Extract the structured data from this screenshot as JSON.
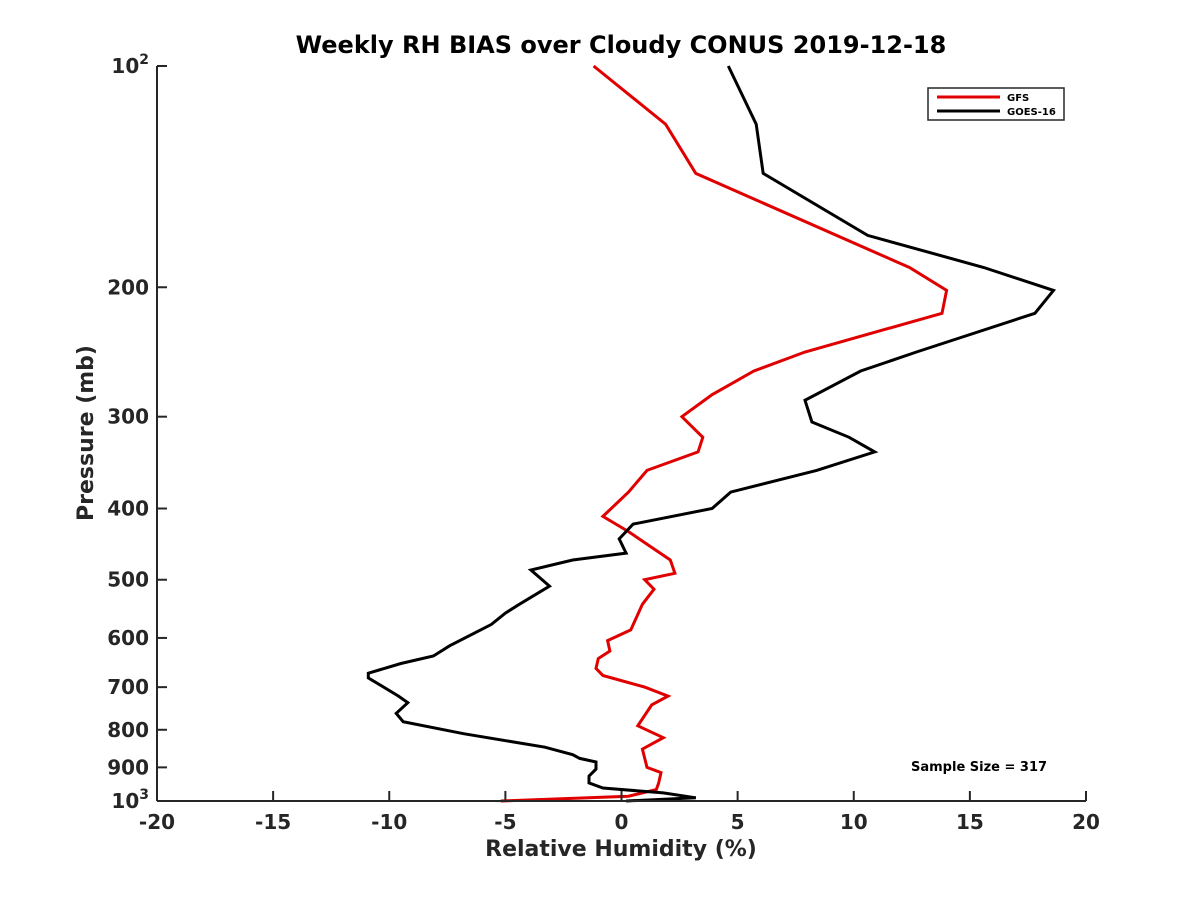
{
  "chart_data": {
    "type": "line",
    "title": "Weekly RH BIAS over Cloudy CONUS 2019-12-18",
    "xlabel": "Relative Humidity (%)",
    "ylabel": "Pressure (mb)",
    "xlim": [
      -20,
      20
    ],
    "ylim": [
      100,
      1000
    ],
    "y_scale": "log",
    "y_reversed": true,
    "x_ticks": [
      "-20",
      "-15",
      "-10",
      "-5",
      "0",
      "5",
      "10",
      "15",
      "20"
    ],
    "y_ticks": [
      {
        "value": 100,
        "base": "10",
        "exp": "2"
      },
      {
        "value": 200,
        "label": "200"
      },
      {
        "value": 300,
        "label": "300"
      },
      {
        "value": 400,
        "label": "400"
      },
      {
        "value": 500,
        "label": "500"
      },
      {
        "value": 600,
        "label": "600"
      },
      {
        "value": 700,
        "label": "700"
      },
      {
        "value": 800,
        "label": "800"
      },
      {
        "value": 900,
        "label": "900"
      },
      {
        "value": 1000,
        "base": "10",
        "exp": "3"
      }
    ],
    "grid": false,
    "legend_position": "top-right",
    "annotation": "Sample Size = 317",
    "series": [
      {
        "name": "GFS",
        "color": "#e00000",
        "points": [
          [
            -1.2,
            100
          ],
          [
            1.9,
            120
          ],
          [
            3.2,
            140
          ],
          [
            12.4,
            188
          ],
          [
            14.0,
            202
          ],
          [
            13.8,
            217
          ],
          [
            7.9,
            245
          ],
          [
            5.7,
            260
          ],
          [
            3.9,
            280
          ],
          [
            2.6,
            300
          ],
          [
            3.5,
            320
          ],
          [
            3.3,
            335
          ],
          [
            1.1,
            355
          ],
          [
            0.3,
            380
          ],
          [
            -0.8,
            410
          ],
          [
            0.3,
            430
          ],
          [
            2.1,
            470
          ],
          [
            2.3,
            490
          ],
          [
            1.0,
            500
          ],
          [
            1.4,
            515
          ],
          [
            0.9,
            540
          ],
          [
            0.4,
            585
          ],
          [
            -0.6,
            605
          ],
          [
            -0.5,
            625
          ],
          [
            -1.0,
            640
          ],
          [
            -1.1,
            660
          ],
          [
            -0.8,
            675
          ],
          [
            1.0,
            700
          ],
          [
            2.0,
            720
          ],
          [
            1.3,
            740
          ],
          [
            0.7,
            790
          ],
          [
            1.8,
            820
          ],
          [
            0.9,
            850
          ],
          [
            1.1,
            900
          ],
          [
            1.7,
            915
          ],
          [
            1.6,
            945
          ],
          [
            1.5,
            965
          ],
          [
            0.3,
            985
          ],
          [
            -5.2,
            1000
          ]
        ]
      },
      {
        "name": "GOES-16",
        "color": "#000000",
        "points": [
          [
            4.6,
            100
          ],
          [
            5.8,
            120
          ],
          [
            6.1,
            140
          ],
          [
            10.6,
            170
          ],
          [
            15.6,
            188
          ],
          [
            18.6,
            202
          ],
          [
            17.8,
            217
          ],
          [
            12.7,
            245
          ],
          [
            10.3,
            260
          ],
          [
            7.9,
            285
          ],
          [
            8.2,
            305
          ],
          [
            9.8,
            320
          ],
          [
            10.9,
            335
          ],
          [
            8.4,
            355
          ],
          [
            4.7,
            380
          ],
          [
            3.9,
            400
          ],
          [
            0.5,
            420
          ],
          [
            -0.1,
            440
          ],
          [
            0.2,
            460
          ],
          [
            -2.1,
            470
          ],
          [
            -3.9,
            485
          ],
          [
            -3.1,
            510
          ],
          [
            -4.4,
            540
          ],
          [
            -5.0,
            555
          ],
          [
            -5.6,
            575
          ],
          [
            -7.4,
            615
          ],
          [
            -8.1,
            635
          ],
          [
            -9.5,
            650
          ],
          [
            -10.9,
            670
          ],
          [
            -10.9,
            680
          ],
          [
            -9.6,
            720
          ],
          [
            -9.2,
            735
          ],
          [
            -9.7,
            760
          ],
          [
            -9.4,
            780
          ],
          [
            -6.8,
            810
          ],
          [
            -3.3,
            845
          ],
          [
            -2.1,
            865
          ],
          [
            -1.8,
            875
          ],
          [
            -1.1,
            885
          ],
          [
            -1.1,
            905
          ],
          [
            -1.4,
            925
          ],
          [
            -1.4,
            945
          ],
          [
            -0.8,
            960
          ],
          [
            1.8,
            975
          ],
          [
            3.2,
            990
          ],
          [
            0.2,
            1000
          ]
        ]
      }
    ]
  }
}
